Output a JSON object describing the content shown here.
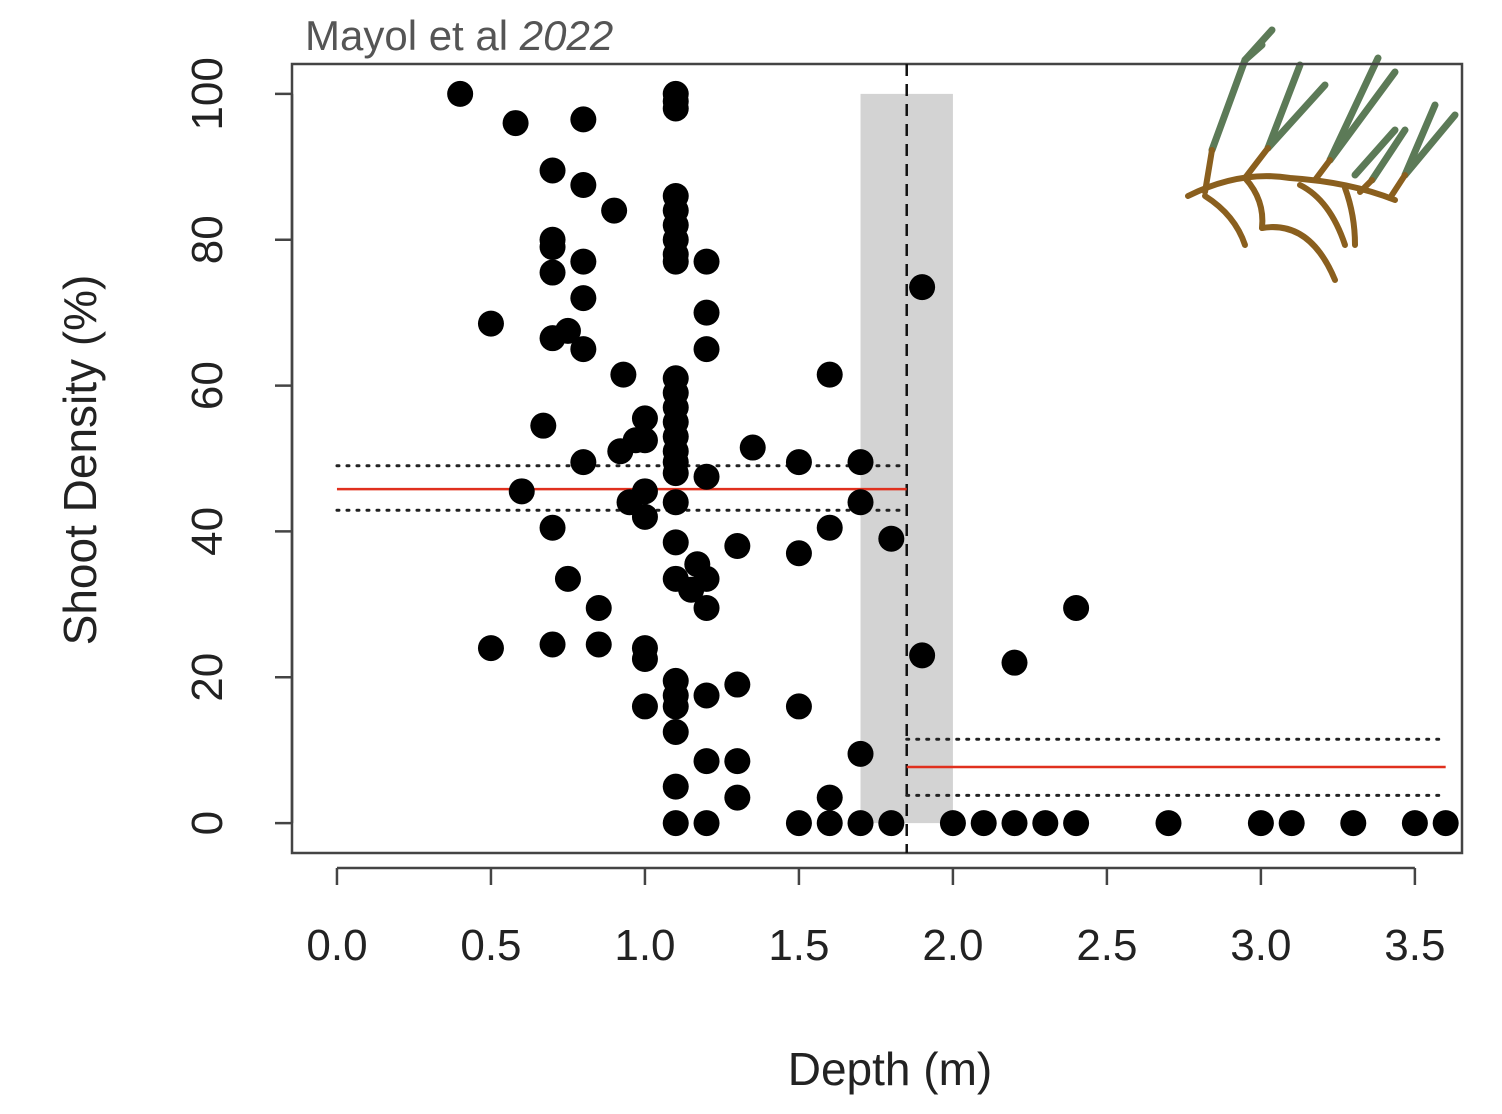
{
  "chart_data": {
    "type": "scatter",
    "title": "Mayol et al",
    "title_year": "2022",
    "xlabel": "Depth (m)",
    "ylabel": "Shoot Density (%)",
    "x": [
      0.4,
      0.58,
      0.8,
      0.7,
      0.8,
      0.9,
      1.1,
      1.1,
      1.1,
      1.1,
      1.1,
      1.1,
      1.1,
      1.1,
      1.1,
      0.7,
      0.7,
      0.7,
      0.8,
      0.8,
      1.2,
      1.2,
      0.5,
      0.7,
      0.75,
      0.8,
      1.2,
      0.93,
      1.6,
      1.1,
      1.1,
      1.1,
      1.1,
      1.1,
      1.1,
      1.1,
      1.1,
      0.67,
      1.0,
      0.92,
      0.97,
      1.0,
      0.8,
      1.35,
      1.5,
      1.7,
      1.2,
      0.6,
      1.0,
      0.95,
      1.0,
      1.1,
      1.7,
      0.7,
      1.6,
      1.8,
      1.1,
      1.3,
      1.5,
      1.17,
      1.1,
      1.15,
      1.2,
      0.75,
      0.85,
      1.2,
      2.4,
      0.5,
      0.7,
      0.85,
      1.0,
      1.0,
      1.9,
      2.2,
      1.1,
      1.1,
      1.3,
      1.2,
      1.1,
      1.0,
      1.5,
      1.1,
      1.7,
      1.2,
      1.3,
      1.1,
      1.3,
      1.6,
      1.9,
      1.1,
      1.2,
      1.5,
      1.6,
      1.7,
      1.8,
      2.0,
      2.1,
      2.2,
      2.3,
      2.4,
      2.7,
      3.0,
      3.1,
      3.3,
      3.5,
      3.6
    ],
    "values": [
      100,
      96,
      96.5,
      89.5,
      87.5,
      84,
      100,
      99,
      98,
      86,
      84,
      82,
      80,
      78,
      77,
      80,
      79,
      75.5,
      77,
      72,
      77,
      70,
      68.5,
      66.5,
      67.5,
      65,
      65,
      61.5,
      61.5,
      61,
      59,
      57,
      55,
      53,
      51,
      49.5,
      48,
      54.5,
      55.5,
      51,
      52.5,
      52.5,
      49.5,
      51.5,
      49.5,
      49.5,
      47.5,
      45.5,
      45.5,
      44,
      42,
      44,
      44,
      40.5,
      40.5,
      39,
      38.5,
      38,
      37,
      35.5,
      33.5,
      32,
      33.5,
      33.5,
      29.5,
      29.5,
      29.5,
      24,
      24.5,
      24.5,
      24,
      22.5,
      23,
      22,
      19.5,
      17.5,
      19,
      17.5,
      16,
      16,
      16,
      12.5,
      9.5,
      8.5,
      8.5,
      5,
      3.5,
      3.5,
      73.5,
      0,
      0,
      0,
      0,
      0,
      0,
      0,
      0,
      0,
      0,
      0,
      0,
      0,
      0,
      0,
      0,
      0
    ],
    "color": "#000000",
    "xlim": [
      -0.146,
      3.653
    ],
    "ylim": [
      -4.1,
      104.1
    ],
    "xticks": [
      {
        "value": 0,
        "label": "0.0"
      },
      0.5,
      {
        "value": 1,
        "label": "1.0"
      },
      1.5,
      {
        "value": 2,
        "label": "2.0"
      },
      2.5,
      {
        "value": 3,
        "label": "3.0"
      },
      3.5
    ],
    "yticks": [
      0,
      20,
      40,
      60,
      80,
      100
    ],
    "threshold": 1.85,
    "band": {
      "x": [
        1.7,
        2.0
      ],
      "y": [
        0,
        100
      ],
      "color": "#d3d3d3"
    },
    "fits": [
      {
        "x": [
          0,
          1.85
        ],
        "mean": 45.8,
        "lower": 42.9,
        "upper": 49
      },
      {
        "x": [
          1.85,
          3.6
        ],
        "mean": 7.7,
        "lower": 3.8,
        "upper": 11.5
      }
    ],
    "fit_color": "#e0301e"
  }
}
